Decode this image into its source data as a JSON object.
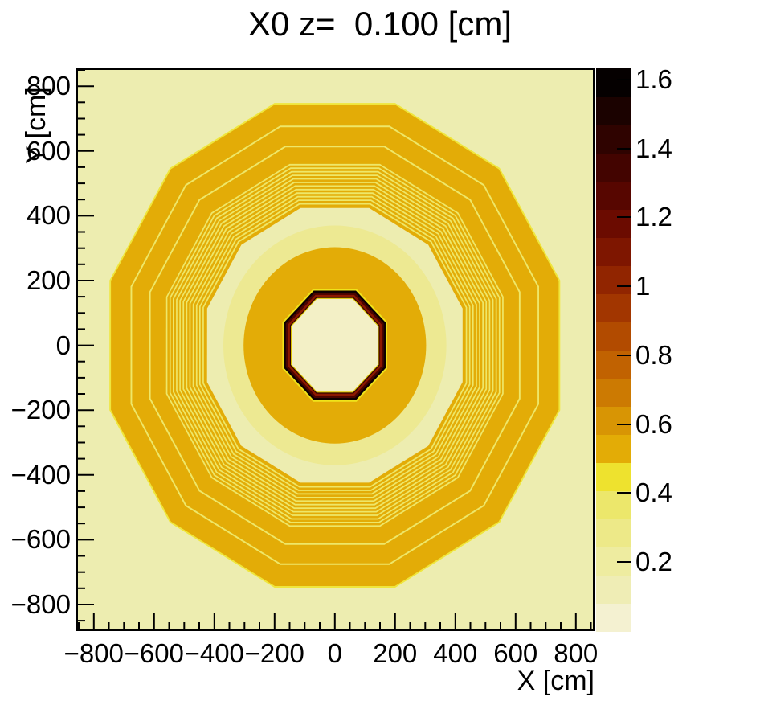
{
  "title": "X0 z=  0.100 [cm]",
  "chart_data": {
    "type": "heatmap",
    "title": "X0 z=  0.100 [cm]",
    "xlabel": "X [cm]",
    "ylabel": "Y [cm]",
    "xlim": [
      -858,
      862
    ],
    "ylim": [
      -882,
      855
    ],
    "x_ticks": [
      -800,
      -600,
      -400,
      -200,
      0,
      200,
      400,
      600,
      800
    ],
    "y_ticks": [
      -800,
      -600,
      -400,
      -200,
      0,
      200,
      400,
      600,
      800
    ],
    "minor_tick_step": 50,
    "grid": false,
    "legend_position": "right-colorbar",
    "z_range": [
      0,
      1.632
    ],
    "z_ticks": [
      0.2,
      0.4,
      0.6,
      0.8,
      1,
      1.2,
      1.4,
      1.6
    ],
    "palette_bottom_to_top": [
      "#F4F1D1",
      "#EFEDB5",
      "#EEECA0",
      "#EDE988",
      "#ECE76B",
      "#EEE22E",
      "#E3AC06",
      "#D89504",
      "#CC7A02",
      "#C16201",
      "#B24B00",
      "#A23600",
      "#912500",
      "#7E1600",
      "#6B0B00",
      "#570600",
      "#430400",
      "#2F0300",
      "#1B0200",
      "#050000"
    ],
    "background": "#EDEDB0",
    "description": "Radiation length X0 map in x-y plane: nested dodecagonal contour bands (yoke), circular band (coil/calorimeter), dark octagonal ring (inner detector), values in radii [cm]",
    "shapes": [
      {
        "kind": "ngon",
        "n": 12,
        "a": 748,
        "color": "#EFE63C"
      },
      {
        "kind": "ngon",
        "n": 12,
        "a": 743,
        "color": "#E3AC07"
      },
      {
        "kind": "ngon",
        "n": 12,
        "a": 678,
        "color": "#EEE768"
      },
      {
        "kind": "ngon",
        "n": 12,
        "a": 673,
        "color": "#E3AC07"
      },
      {
        "kind": "ngon",
        "n": 12,
        "a": 616,
        "color": "#EEE768"
      },
      {
        "kind": "ngon",
        "n": 12,
        "a": 611,
        "color": "#E3AC07"
      },
      {
        "kind": "ngon",
        "n": 12,
        "a": 560,
        "color": "#EEE768"
      },
      {
        "kind": "ngon",
        "n": 12,
        "a": 555.5,
        "color": "#E3AC07"
      },
      {
        "kind": "ngon",
        "n": 12,
        "a": 549,
        "color": "#EEE768"
      },
      {
        "kind": "ngon",
        "n": 12,
        "a": 544.5,
        "color": "#E3AC07"
      },
      {
        "kind": "ngon",
        "n": 12,
        "a": 538,
        "color": "#EEE768"
      },
      {
        "kind": "ngon",
        "n": 12,
        "a": 533.5,
        "color": "#E3AC07"
      },
      {
        "kind": "ngon",
        "n": 12,
        "a": 527,
        "color": "#EEE768"
      },
      {
        "kind": "ngon",
        "n": 12,
        "a": 522.5,
        "color": "#E3AC07"
      },
      {
        "kind": "ngon",
        "n": 12,
        "a": 516,
        "color": "#EEE768"
      },
      {
        "kind": "ngon",
        "n": 12,
        "a": 511.5,
        "color": "#E3AC07"
      },
      {
        "kind": "ngon",
        "n": 12,
        "a": 505,
        "color": "#EEE768"
      },
      {
        "kind": "ngon",
        "n": 12,
        "a": 500.5,
        "color": "#E3AC07"
      },
      {
        "kind": "ngon",
        "n": 12,
        "a": 494,
        "color": "#EEE768"
      },
      {
        "kind": "ngon",
        "n": 12,
        "a": 489.5,
        "color": "#E3AC07"
      },
      {
        "kind": "ngon",
        "n": 12,
        "a": 483,
        "color": "#EEE768"
      },
      {
        "kind": "ngon",
        "n": 12,
        "a": 478.5,
        "color": "#E3AC07"
      },
      {
        "kind": "ngon",
        "n": 12,
        "a": 472,
        "color": "#EEE768"
      },
      {
        "kind": "ngon",
        "n": 12,
        "a": 467.5,
        "color": "#E3AC07"
      },
      {
        "kind": "ngon",
        "n": 12,
        "a": 461,
        "color": "#EEE768"
      },
      {
        "kind": "ngon",
        "n": 12,
        "a": 456.5,
        "color": "#E3AC07"
      },
      {
        "kind": "ngon",
        "n": 12,
        "a": 450,
        "color": "#EEE768"
      },
      {
        "kind": "ngon",
        "n": 12,
        "a": 445.5,
        "color": "#E3AC07"
      },
      {
        "kind": "ngon",
        "n": 12,
        "a": 439,
        "color": "#EEE768"
      },
      {
        "kind": "ngon",
        "n": 12,
        "a": 434.5,
        "color": "#E3AC07"
      },
      {
        "kind": "ngon",
        "n": 12,
        "a": 424,
        "color": "#EDEDB0"
      },
      {
        "kind": "circle",
        "r": 370,
        "color": "#EDE992"
      },
      {
        "kind": "circle",
        "r": 303,
        "color": "#E3AC07"
      },
      {
        "kind": "ngon",
        "n": 8,
        "a": 174,
        "color": "#F0E41A"
      },
      {
        "kind": "ngon",
        "n": 8,
        "a": 169,
        "color": "#0D0100"
      },
      {
        "kind": "ngon",
        "n": 8,
        "a": 162.5,
        "color": "#4A0400"
      },
      {
        "kind": "ngon",
        "n": 8,
        "a": 155.5,
        "color": "#8C1900"
      },
      {
        "kind": "ngon",
        "n": 8,
        "a": 149,
        "color": "#2E0300"
      },
      {
        "kind": "ngon",
        "n": 8,
        "a": 146,
        "color": "#DFC400"
      },
      {
        "kind": "ngon",
        "n": 8,
        "a": 143,
        "color": "#F3F0C6"
      }
    ]
  }
}
